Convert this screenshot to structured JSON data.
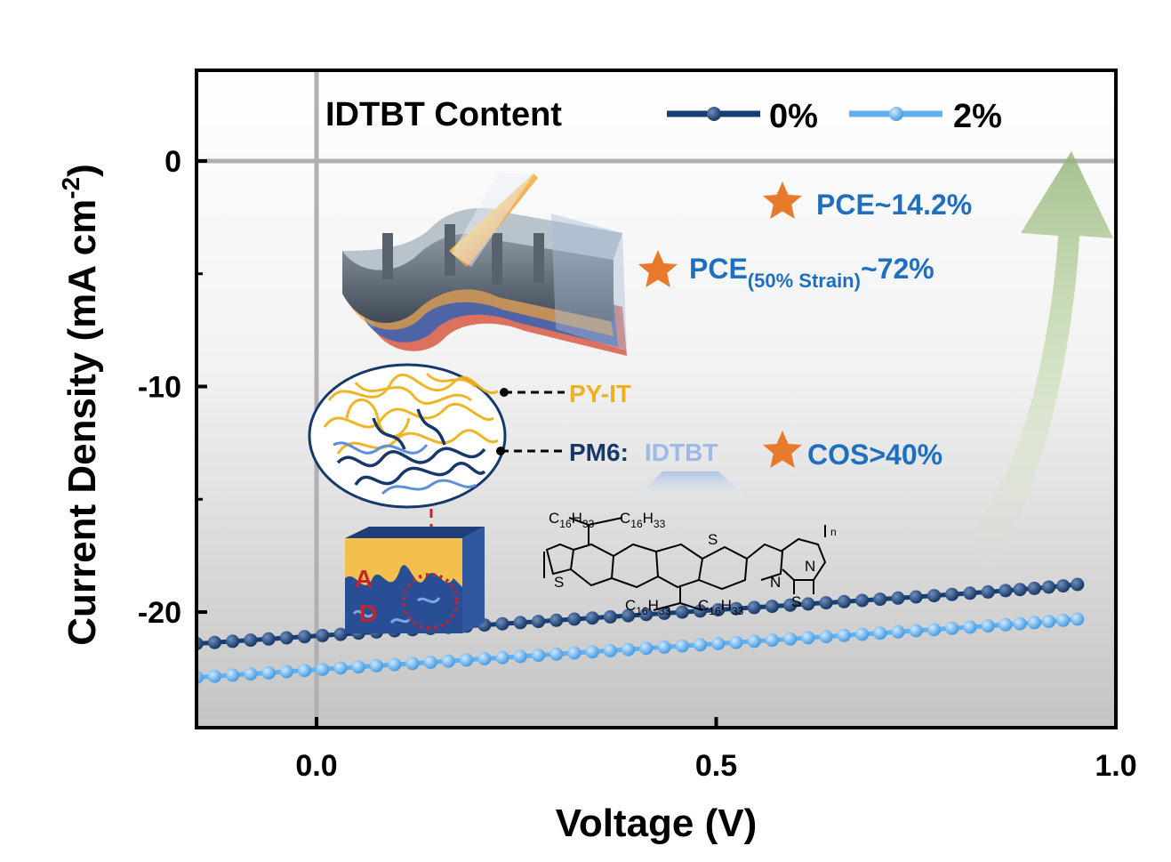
{
  "chart_data": {
    "type": "line",
    "xlabel": "Voltage (V)",
    "ylabel_main": "Current Density (mA cm",
    "ylabel_sup": "-2",
    "ylabel_close": ")",
    "xlim": [
      -0.15,
      1.0
    ],
    "ylim": [
      -25,
      4
    ],
    "x_ticks": [
      {
        "value": 0.0,
        "label": "0.0"
      },
      {
        "value": 0.5,
        "label": "0.5"
      },
      {
        "value": 1.0,
        "label": "1.0"
      }
    ],
    "y_ticks": [
      {
        "value": 0,
        "label": "0"
      },
      {
        "value": -10,
        "label": "-10"
      },
      {
        "value": -20,
        "label": "-20"
      }
    ],
    "legend": {
      "title": "IDTBT Content",
      "placement": "top"
    },
    "series": [
      {
        "name": "0%",
        "color": "#163e74",
        "jsc": -21.4,
        "slope": 2.3,
        "a": 0.0022,
        "b": 0.135,
        "voc": 0.945,
        "points": [
          [
            -0.15,
            -21.4
          ],
          [
            0.0,
            -21.2
          ],
          [
            0.2,
            -20.8
          ],
          [
            0.4,
            -20.3
          ],
          [
            0.6,
            -19.5
          ],
          [
            0.7,
            -18.6
          ],
          [
            0.75,
            -17.8
          ],
          [
            0.8,
            -16.3
          ],
          [
            0.85,
            -13.2
          ],
          [
            0.88,
            -10.3
          ],
          [
            0.9,
            -7.9
          ],
          [
            0.92,
            -4.9
          ],
          [
            0.94,
            -0.9
          ],
          [
            0.96,
            3.3
          ]
        ]
      },
      {
        "name": "2%",
        "color": "#5fb0ee",
        "jsc": -22.9,
        "slope": 2.3,
        "a": 0.0008,
        "b": 0.12,
        "voc": 0.945,
        "points": [
          [
            -0.15,
            -22.9
          ],
          [
            0.0,
            -22.6
          ],
          [
            0.2,
            -22.3
          ],
          [
            0.4,
            -21.7
          ],
          [
            0.6,
            -20.9
          ],
          [
            0.7,
            -20.2
          ],
          [
            0.75,
            -19.6
          ],
          [
            0.8,
            -18.4
          ],
          [
            0.85,
            -15.5
          ],
          [
            0.88,
            -12.1
          ],
          [
            0.9,
            -9.3
          ],
          [
            0.92,
            -5.6
          ],
          [
            0.94,
            -0.7
          ],
          [
            0.96,
            3.8
          ]
        ]
      }
    ],
    "annotations": {
      "pce": "PCE~14.2%",
      "pce_strain_main": "PCE",
      "pce_strain_sub": "(50% Strain)",
      "pce_strain_value": "~72%",
      "cos": "COS>40%",
      "py_it": "PY-IT",
      "pm6": "PM6:",
      "idtbt": "IDTBT",
      "donor_label": "D",
      "acceptor_label": "A"
    },
    "chemical_structure": {
      "side_chain_main": "C",
      "side_chain_sub1": "16",
      "side_chain_mid": "H",
      "side_chain_sub2": "33",
      "sulfur": "S",
      "nitrogen": "N",
      "repeat": "n"
    },
    "colors": {
      "accent_text": "#1f6fc0",
      "star": "#e87a2c",
      "pyit": "#f0b21c",
      "pm6": "#17386b",
      "idtbt": "#9db9e6"
    }
  }
}
